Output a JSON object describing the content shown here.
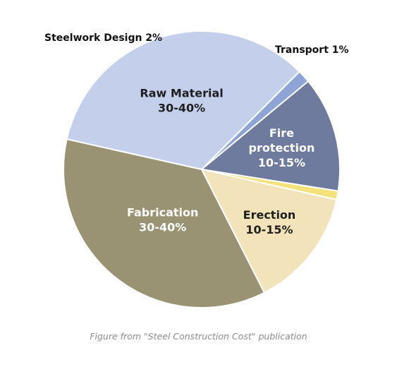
{
  "chart_data": {
    "type": "pie",
    "title": "",
    "slices": [
      {
        "label_lines": [
          "Fabrication",
          "30-40%"
        ],
        "value": 36,
        "color": "#9a9373",
        "text_color": "#ffffff",
        "label_outside": false
      },
      {
        "label_lines": [
          "Raw Material",
          "30-40%"
        ],
        "value": 34,
        "color": "#c4cfeb",
        "text_color": "#1f1f1f",
        "label_outside": false
      },
      {
        "label_lines": [
          "Steelwork Design 2%"
        ],
        "value": 1.5,
        "color": "#8ea4d6",
        "text_color": "#111111",
        "label_outside": true
      },
      {
        "label_lines": [
          "Fire",
          "protection",
          "10-15%"
        ],
        "value": 13.5,
        "color": "#6e7b9f",
        "text_color": "#ffffff",
        "label_outside": false
      },
      {
        "label_lines": [
          "Transport 1%"
        ],
        "value": 1,
        "color": "#f3e27a",
        "text_color": "#111111",
        "label_outside": true
      },
      {
        "label_lines": [
          "Erection",
          "10-15%"
        ],
        "value": 14,
        "color": "#f2e3ba",
        "text_color": "#1f1f1f",
        "label_outside": false
      }
    ],
    "legend": "none",
    "caption": "Figure from \"Steel Construction Cost\" publication"
  }
}
